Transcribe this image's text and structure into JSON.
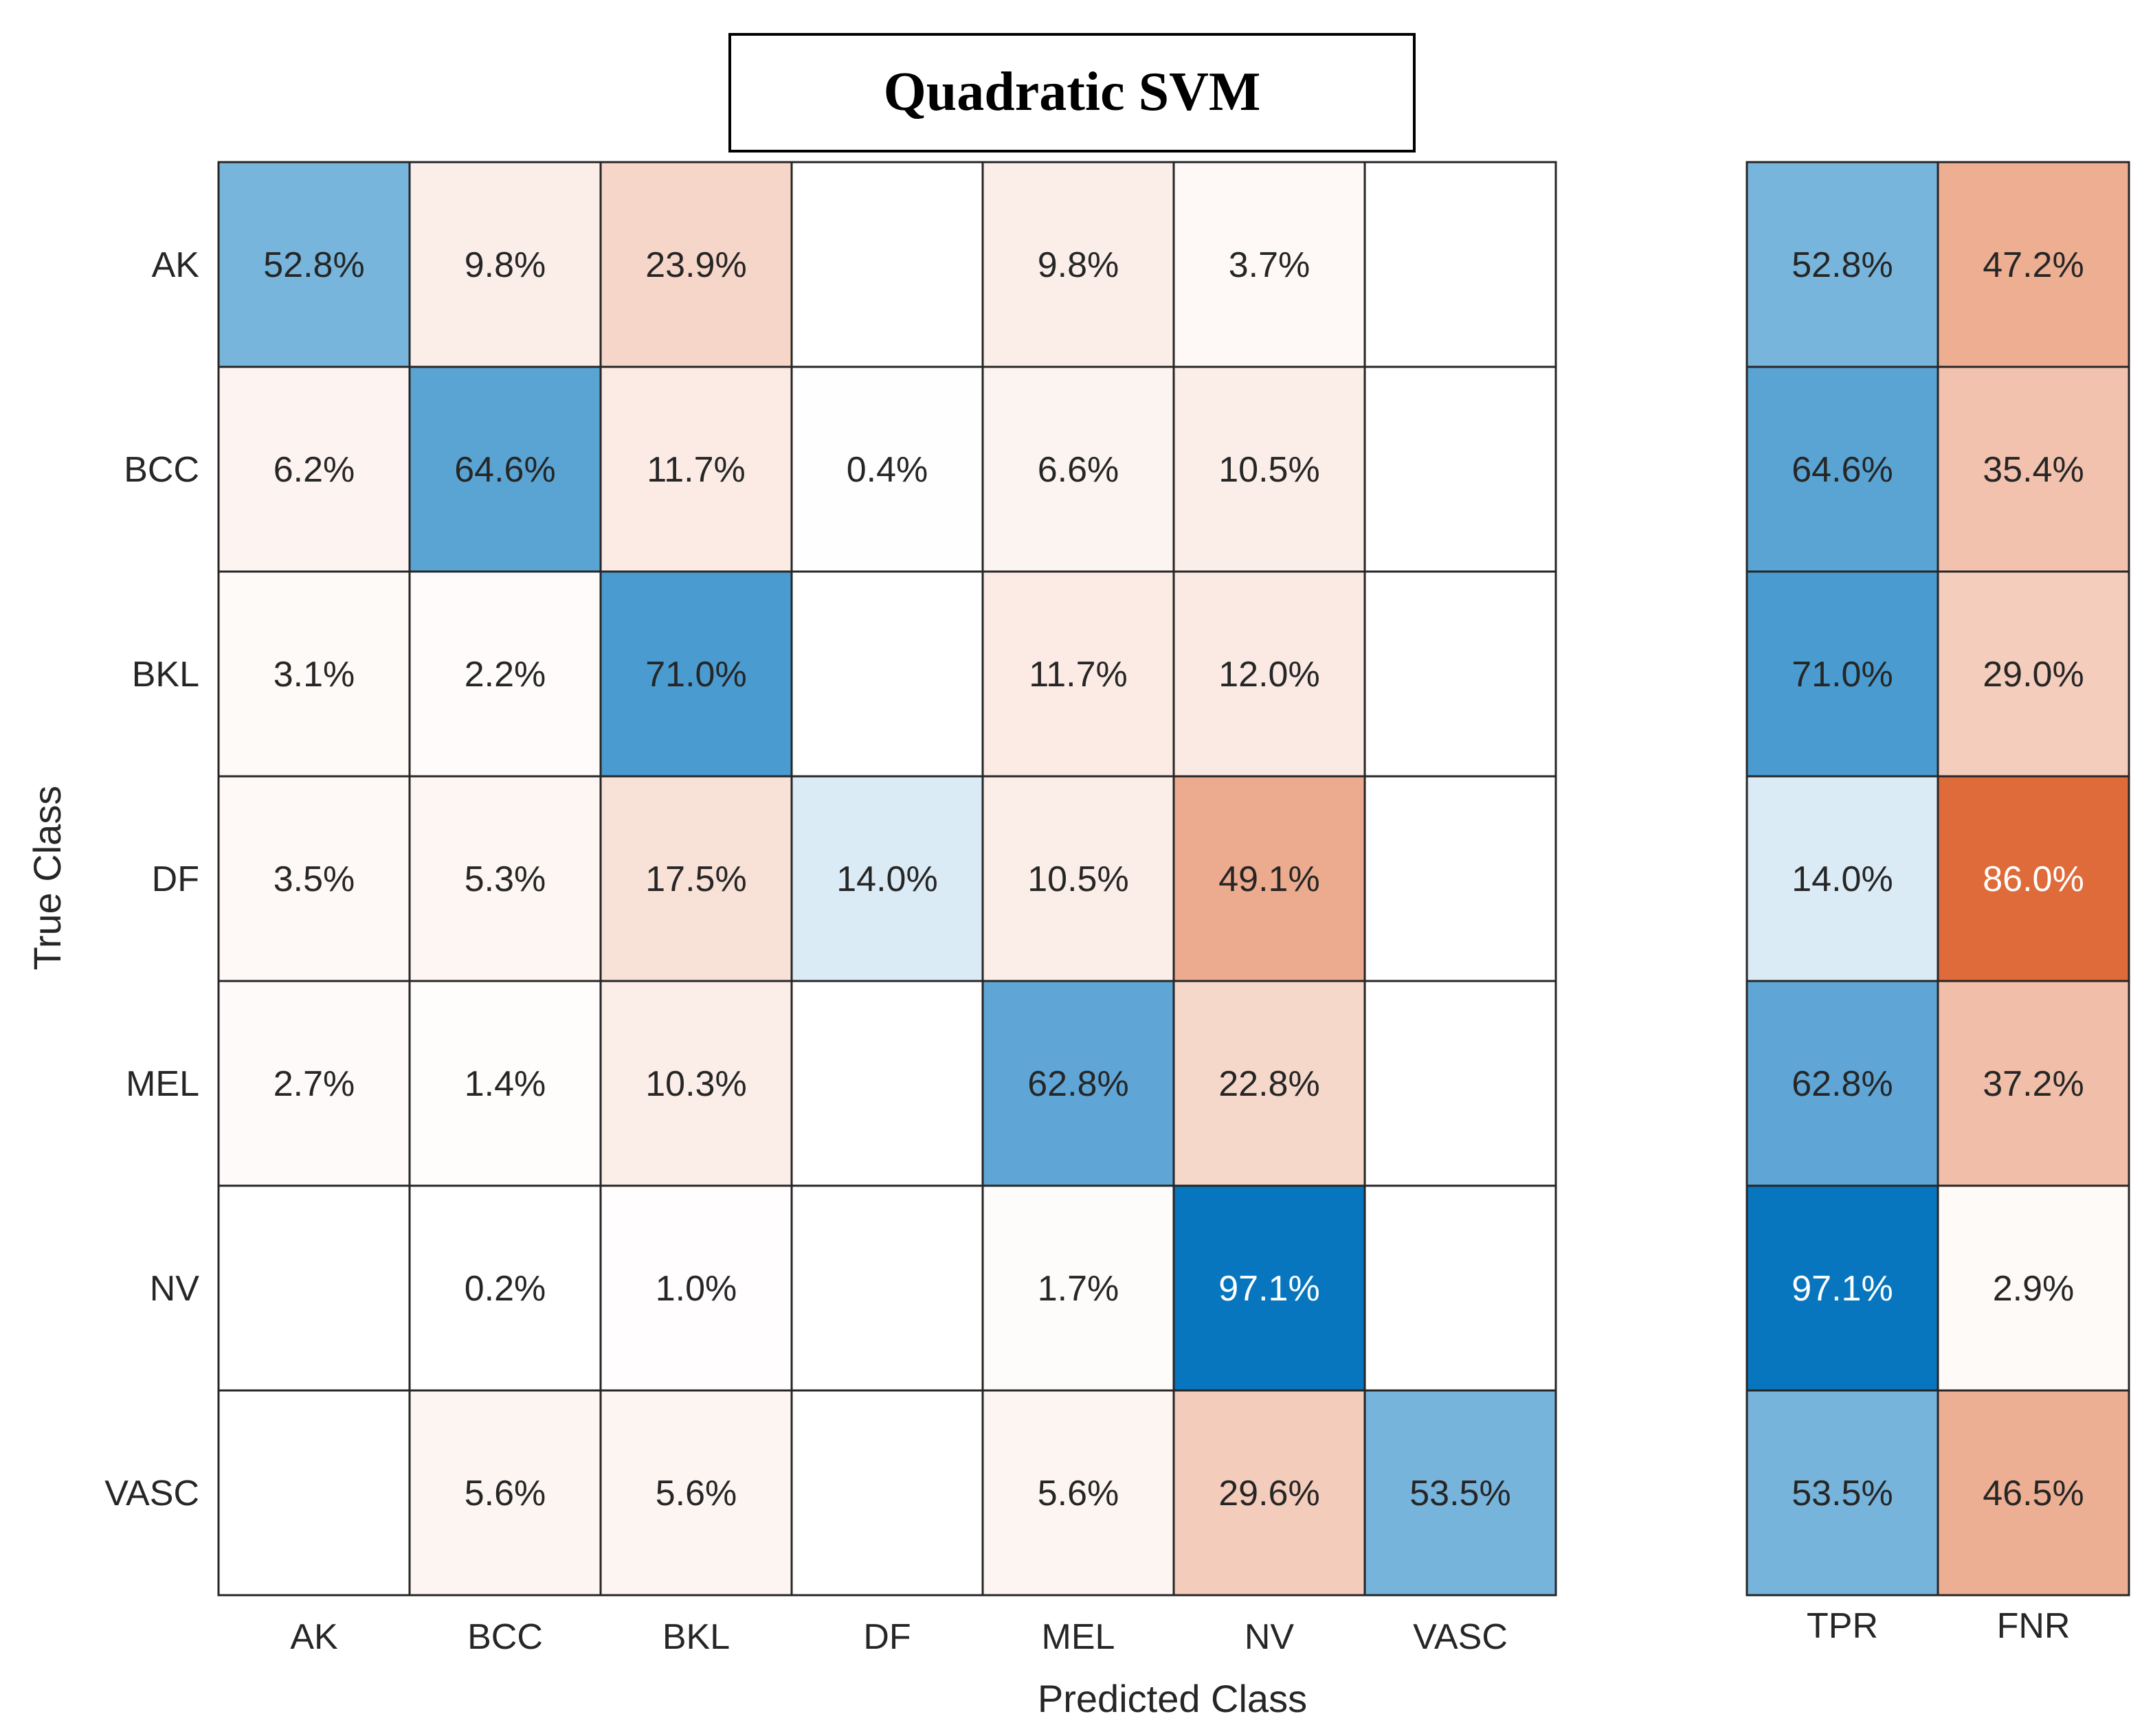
{
  "chart_data": {
    "type": "heatmap",
    "title": "Quadratic SVM",
    "xlabel": "Predicted Class",
    "ylabel": "True Class",
    "classes": [
      "AK",
      "BCC",
      "BKL",
      "DF",
      "MEL",
      "NV",
      "VASC"
    ],
    "matrix": [
      [
        52.8,
        9.8,
        23.9,
        null,
        9.8,
        3.7,
        null
      ],
      [
        6.2,
        64.6,
        11.7,
        0.4,
        6.6,
        10.5,
        null
      ],
      [
        3.1,
        2.2,
        71.0,
        null,
        11.7,
        12.0,
        null
      ],
      [
        3.5,
        5.3,
        17.5,
        14.0,
        10.5,
        49.1,
        null
      ],
      [
        2.7,
        1.4,
        10.3,
        null,
        62.8,
        22.8,
        null
      ],
      [
        null,
        0.2,
        1.0,
        null,
        1.7,
        97.1,
        null
      ],
      [
        null,
        5.6,
        5.6,
        null,
        5.6,
        29.6,
        53.5
      ]
    ],
    "summary_columns": [
      "TPR",
      "FNR"
    ],
    "summary": {
      "TPR": [
        52.8,
        64.6,
        71.0,
        14.0,
        62.8,
        97.1,
        53.5
      ],
      "FNR": [
        47.2,
        35.4,
        29.0,
        86.0,
        37.2,
        2.9,
        46.5
      ]
    },
    "value_format": "percent_1dp",
    "colors": {
      "correct_full": "#0072bd",
      "error_full": "#d95319",
      "empty": "#ffffff",
      "light_text": "#ffffff",
      "dark_text": "#262626"
    }
  }
}
